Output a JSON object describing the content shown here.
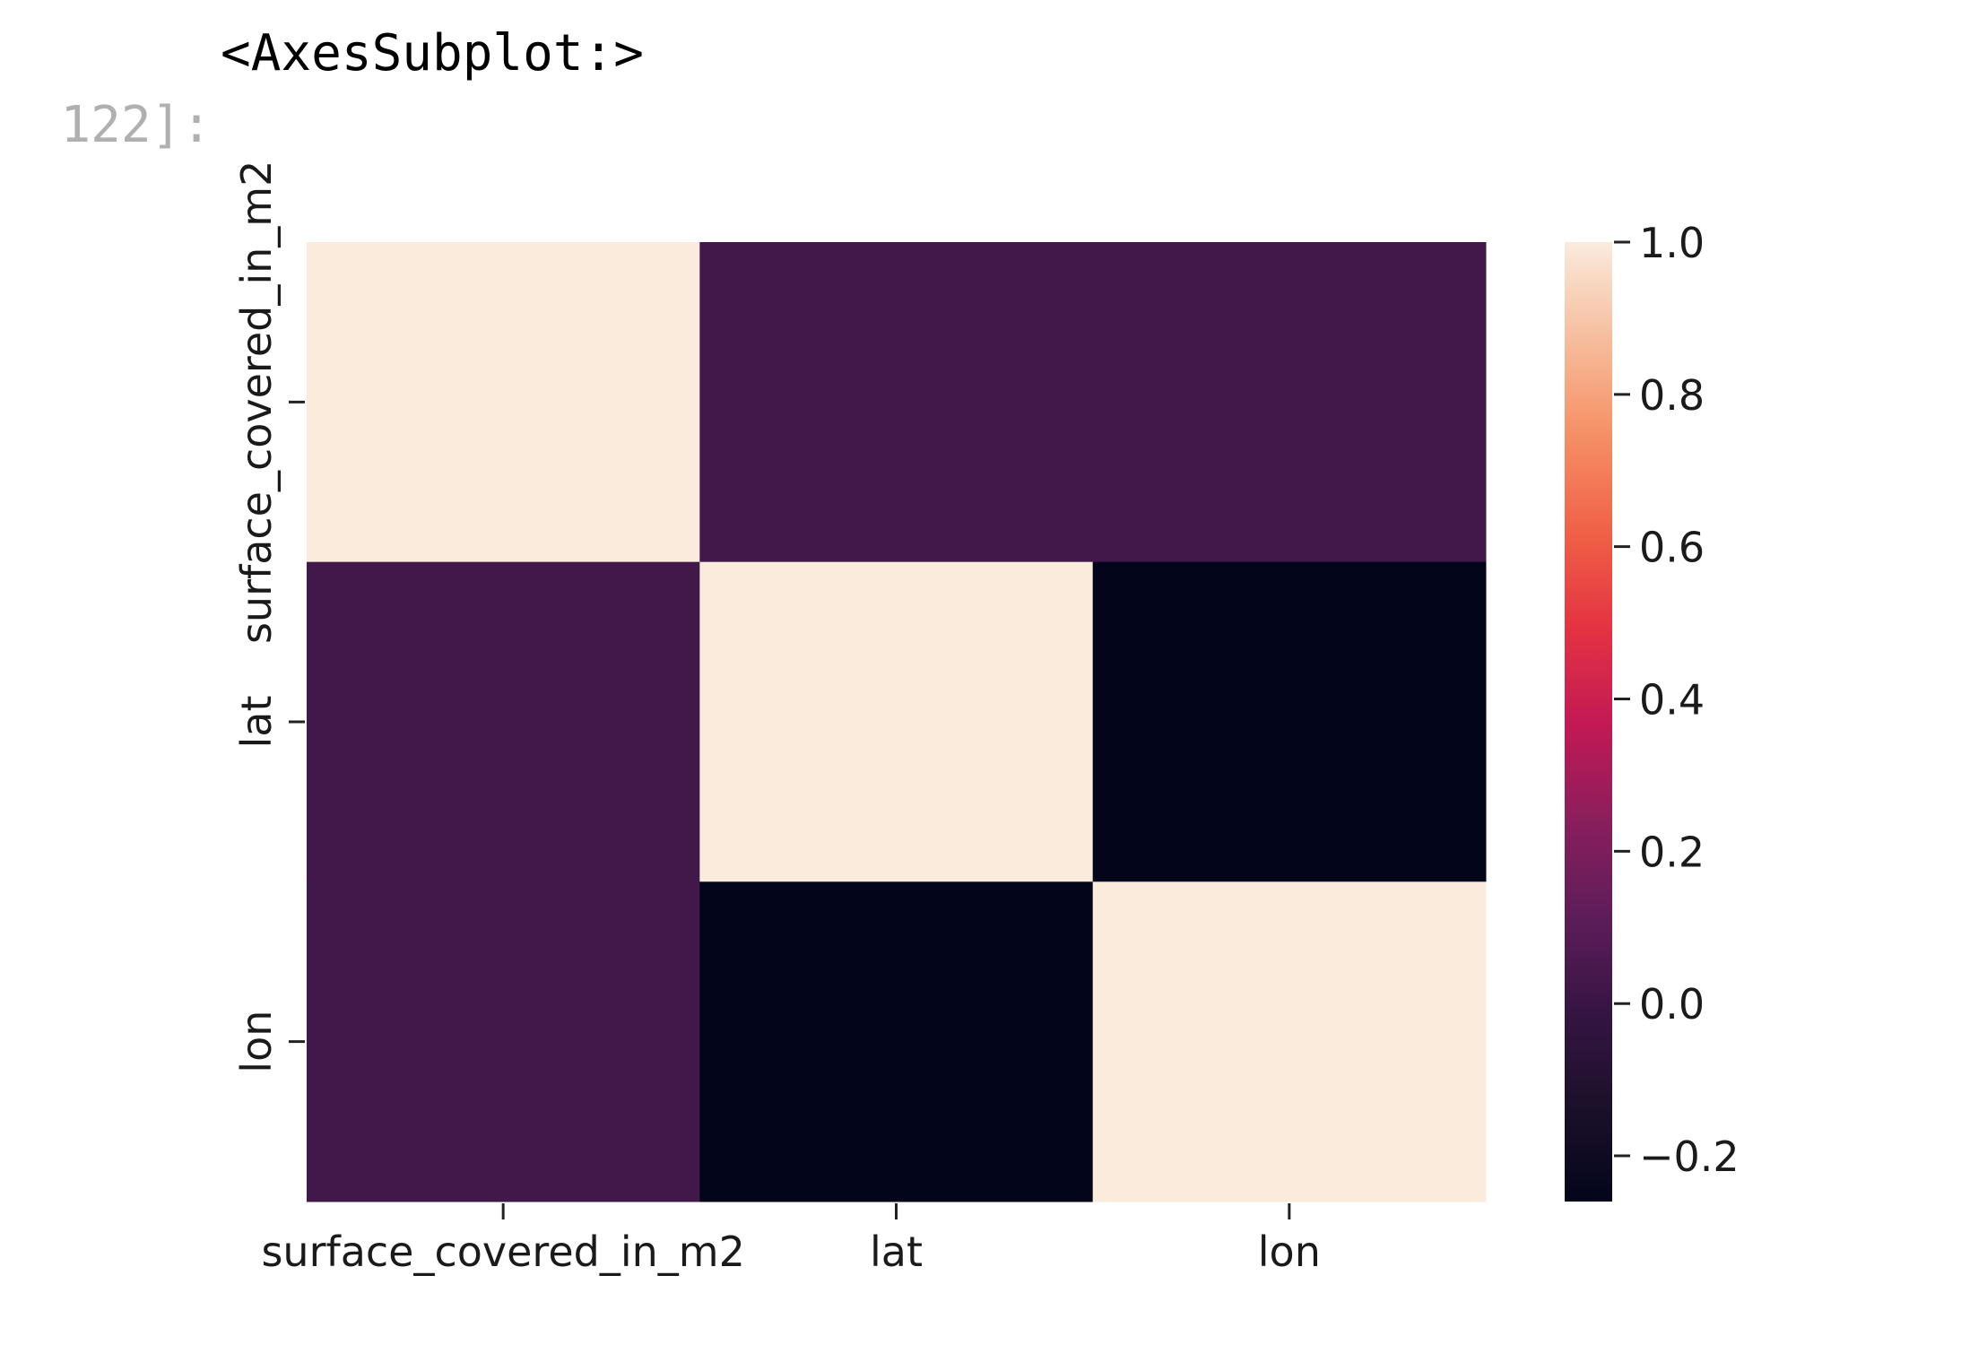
{
  "cell": {
    "prompt_number": "122]:",
    "output_repr": "<AxesSubplot:>"
  },
  "chart_data": {
    "type": "heatmap",
    "title": "",
    "xlabel": "",
    "ylabel": "",
    "x_categories": [
      "surface_covered_in_m2",
      "lat",
      "lon"
    ],
    "y_categories": [
      "surface_covered_in_m2",
      "lat",
      "lon"
    ],
    "values": [
      [
        1.0,
        0.03,
        0.03
      ],
      [
        0.03,
        1.0,
        -0.26
      ],
      [
        0.03,
        -0.26,
        1.0
      ]
    ],
    "colormap": "rocket",
    "colorbar": {
      "range": [
        -0.26,
        1.0
      ],
      "ticks": [
        -0.2,
        0.0,
        0.2,
        0.4,
        0.6,
        0.8,
        1.0
      ],
      "tick_labels": [
        "−0.2",
        "0.0",
        "0.2",
        "0.4",
        "0.6",
        "0.8",
        "1.0"
      ]
    }
  }
}
